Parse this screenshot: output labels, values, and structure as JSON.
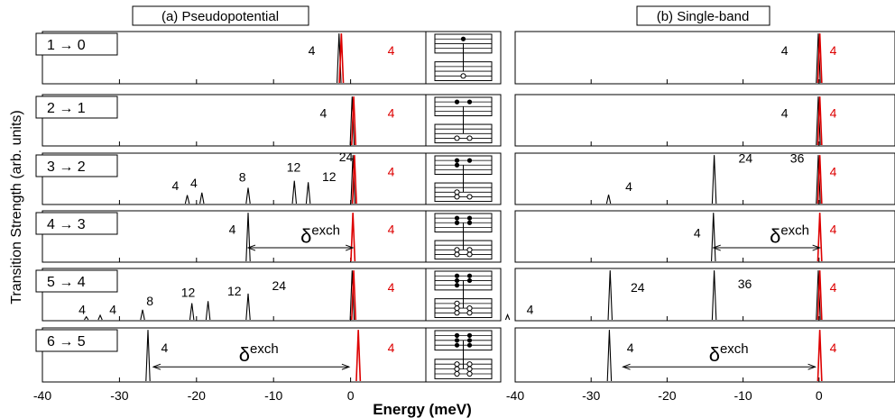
{
  "figure": {
    "panel_a_title": "(a) Pseudopotential",
    "panel_b_title": "(b) Single-band",
    "ylabel": "Transition Strength (arb. units)",
    "xlabel": "Energy (meV)",
    "delta_main": "δ",
    "delta_sup": "exch",
    "colors": {
      "black_peak": "#000000",
      "red_peak": "#dd0000",
      "axis": "#000000"
    }
  },
  "chart_data": {
    "type": "line",
    "x_range": [
      -40,
      10
    ],
    "x_ticks": [
      -40,
      -30,
      -20,
      -10,
      0
    ],
    "x_tick_labels": [
      "-40",
      "-30",
      "-20",
      "-10",
      "0"
    ],
    "rows": [
      {
        "transition": {
          "from": "1",
          "arrow": "→",
          "to": "0"
        },
        "level_diagram": {
          "upper_filled": 1,
          "lower_hollow": 1
        },
        "pseudopotential": {
          "black_peaks": [
            {
              "x": -1.5,
              "h": 0.98,
              "label": "4",
              "lx": -5.5,
              "ly": 0.55
            }
          ],
          "red_peak": {
            "x": -1.2,
            "label": "4"
          },
          "delta_arrow": null
        },
        "single_band": {
          "black_peaks": [
            {
              "x": -0.1,
              "h": 0.98,
              "label": "4",
              "lx": -5,
              "ly": 0.55
            }
          ],
          "red_peak": {
            "x": 0.1,
            "label": "4"
          },
          "delta_arrow": null
        }
      },
      {
        "transition": {
          "from": "2",
          "arrow": "→",
          "to": "1"
        },
        "level_diagram": {
          "upper_filled": 2,
          "lower_hollow": 2
        },
        "pseudopotential": {
          "black_peaks": [
            {
              "x": 0.2,
              "h": 0.98,
              "label": "4",
              "lx": -4,
              "ly": 0.55
            }
          ],
          "red_peak": {
            "x": 0.4,
            "label": "4"
          },
          "delta_arrow": null
        },
        "single_band": {
          "black_peaks": [
            {
              "x": -0.1,
              "h": 0.98,
              "label": "4",
              "lx": -5,
              "ly": 0.55
            }
          ],
          "red_peak": {
            "x": 0.1,
            "label": "4"
          },
          "delta_arrow": null
        }
      },
      {
        "transition": {
          "from": "3",
          "arrow": "→",
          "to": "2"
        },
        "level_diagram": {
          "upper_filled": 3,
          "lower_hollow": 3
        },
        "pseudopotential": {
          "black_peaks": [
            {
              "x": -21.2,
              "h": 0.17,
              "label": "4",
              "lx": -23.2,
              "ly": 0.28
            },
            {
              "x": -19.3,
              "h": 0.22,
              "label": "4",
              "lx": -20.8,
              "ly": 0.33
            },
            {
              "x": -13.3,
              "h": 0.32,
              "label": "8",
              "lx": -14.5,
              "ly": 0.45
            },
            {
              "x": -7.3,
              "h": 0.46,
              "label": "12",
              "lx": -8.3,
              "ly": 0.64
            },
            {
              "x": -5.5,
              "h": 0.43,
              "label": "12",
              "lx": -3.7,
              "ly": 0.46
            },
            {
              "x": 0.3,
              "h": 0.98,
              "label": "24",
              "lx": -1.5,
              "ly": 0.84
            }
          ],
          "red_peak": {
            "x": 0.5,
            "label": "4"
          },
          "delta_arrow": null
        },
        "single_band": {
          "black_peaks": [
            {
              "x": -27.7,
              "h": 0.18,
              "label": "4",
              "lx": -25.5,
              "ly": 0.26
            },
            {
              "x": -13.8,
              "h": 0.98,
              "label": "24",
              "lx": -10.6,
              "ly": 0.82
            },
            {
              "x": -0.1,
              "h": 0.98,
              "label": "36",
              "lx": -3.8,
              "ly": 0.82
            }
          ],
          "red_peak": {
            "x": 0.1,
            "label": "4"
          },
          "delta_arrow": null
        }
      },
      {
        "transition": {
          "from": "4",
          "arrow": "→",
          "to": "3"
        },
        "level_diagram": {
          "upper_filled": 4,
          "lower_hollow": 4
        },
        "pseudopotential": {
          "black_peaks": [
            {
              "x": -13.3,
              "h": 0.98,
              "label": "4",
              "lx": -15.8,
              "ly": 0.55
            }
          ],
          "red_peak": {
            "x": 0.3,
            "label": "4"
          },
          "delta_arrow": {
            "x1": -13.3,
            "x2": 0.3,
            "y": 0.28,
            "tx": -6.5,
            "ty": 0.38
          }
        },
        "single_band": {
          "black_peaks": [
            {
              "x": -13.9,
              "h": 0.98,
              "label": "4",
              "lx": -16.5,
              "ly": 0.48
            }
          ],
          "red_peak": {
            "x": 0.1,
            "label": "4"
          },
          "delta_arrow": {
            "x1": -13.9,
            "x2": 0.1,
            "y": 0.28,
            "tx": -6.5,
            "ty": 0.38
          }
        }
      },
      {
        "transition": {
          "from": "5",
          "arrow": "→",
          "to": "4"
        },
        "level_diagram": {
          "upper_filled": 5,
          "lower_hollow": 5
        },
        "pseudopotential": {
          "black_peaks": [
            {
              "x": -34.3,
              "h": 0.06,
              "label": "4",
              "lx": -35.3,
              "ly": 0.13
            },
            {
              "x": -32.5,
              "h": 0.09,
              "label": "4",
              "lx": -31.3,
              "ly": 0.13
            },
            {
              "x": -27.0,
              "h": 0.2,
              "label": "8",
              "lx": -26.5,
              "ly": 0.29
            },
            {
              "x": -20.6,
              "h": 0.33,
              "label": "12",
              "lx": -22.0,
              "ly": 0.46
            },
            {
              "x": -18.5,
              "h": 0.37,
              "label": "12",
              "lx": -16.0,
              "ly": 0.48
            },
            {
              "x": -13.3,
              "h": 0.52,
              "label": "24",
              "lx": -10.2,
              "ly": 0.59
            },
            {
              "x": 0.2,
              "h": 0.98,
              "label": "",
              "lx": 0,
              "ly": 0
            }
          ],
          "red_peak": {
            "x": 0.4,
            "label": "4"
          },
          "delta_arrow": null
        },
        "single_band": {
          "black_peaks": [
            {
              "x": -41.0,
              "h": 0.1,
              "label": "4",
              "lx": -38.5,
              "ly": 0.13
            },
            {
              "x": -27.5,
              "h": 0.98,
              "label": "24",
              "lx": -24.8,
              "ly": 0.55
            },
            {
              "x": -13.8,
              "h": 0.98,
              "label": "36",
              "lx": -10.7,
              "ly": 0.62
            },
            {
              "x": -0.1,
              "h": 0.98,
              "label": "",
              "lx": 0,
              "ly": 0
            }
          ],
          "red_peak": {
            "x": 0.1,
            "label": "4"
          },
          "delta_arrow": null
        }
      },
      {
        "transition": {
          "from": "6",
          "arrow": "→",
          "to": "5"
        },
        "level_diagram": {
          "upper_filled": 6,
          "lower_hollow": 6
        },
        "pseudopotential": {
          "black_peaks": [
            {
              "x": -26.3,
              "h": 0.98,
              "label": "4",
              "lx": -24.6,
              "ly": 0.55
            }
          ],
          "red_peak": {
            "x": 1.0,
            "label": "4"
          },
          "delta_arrow": {
            "x1": -25.6,
            "x2": -0.2,
            "y": 0.28,
            "tx": -14.5,
            "ty": 0.38
          }
        },
        "single_band": {
          "black_peaks": [
            {
              "x": -27.6,
              "h": 0.98,
              "label": "4",
              "lx": -25.3,
              "ly": 0.55
            }
          ],
          "red_peak": {
            "x": 0.1,
            "label": "4"
          },
          "delta_arrow": {
            "x1": -25.8,
            "x2": -0.5,
            "y": 0.28,
            "tx": -14.5,
            "ty": 0.38
          }
        }
      }
    ]
  }
}
